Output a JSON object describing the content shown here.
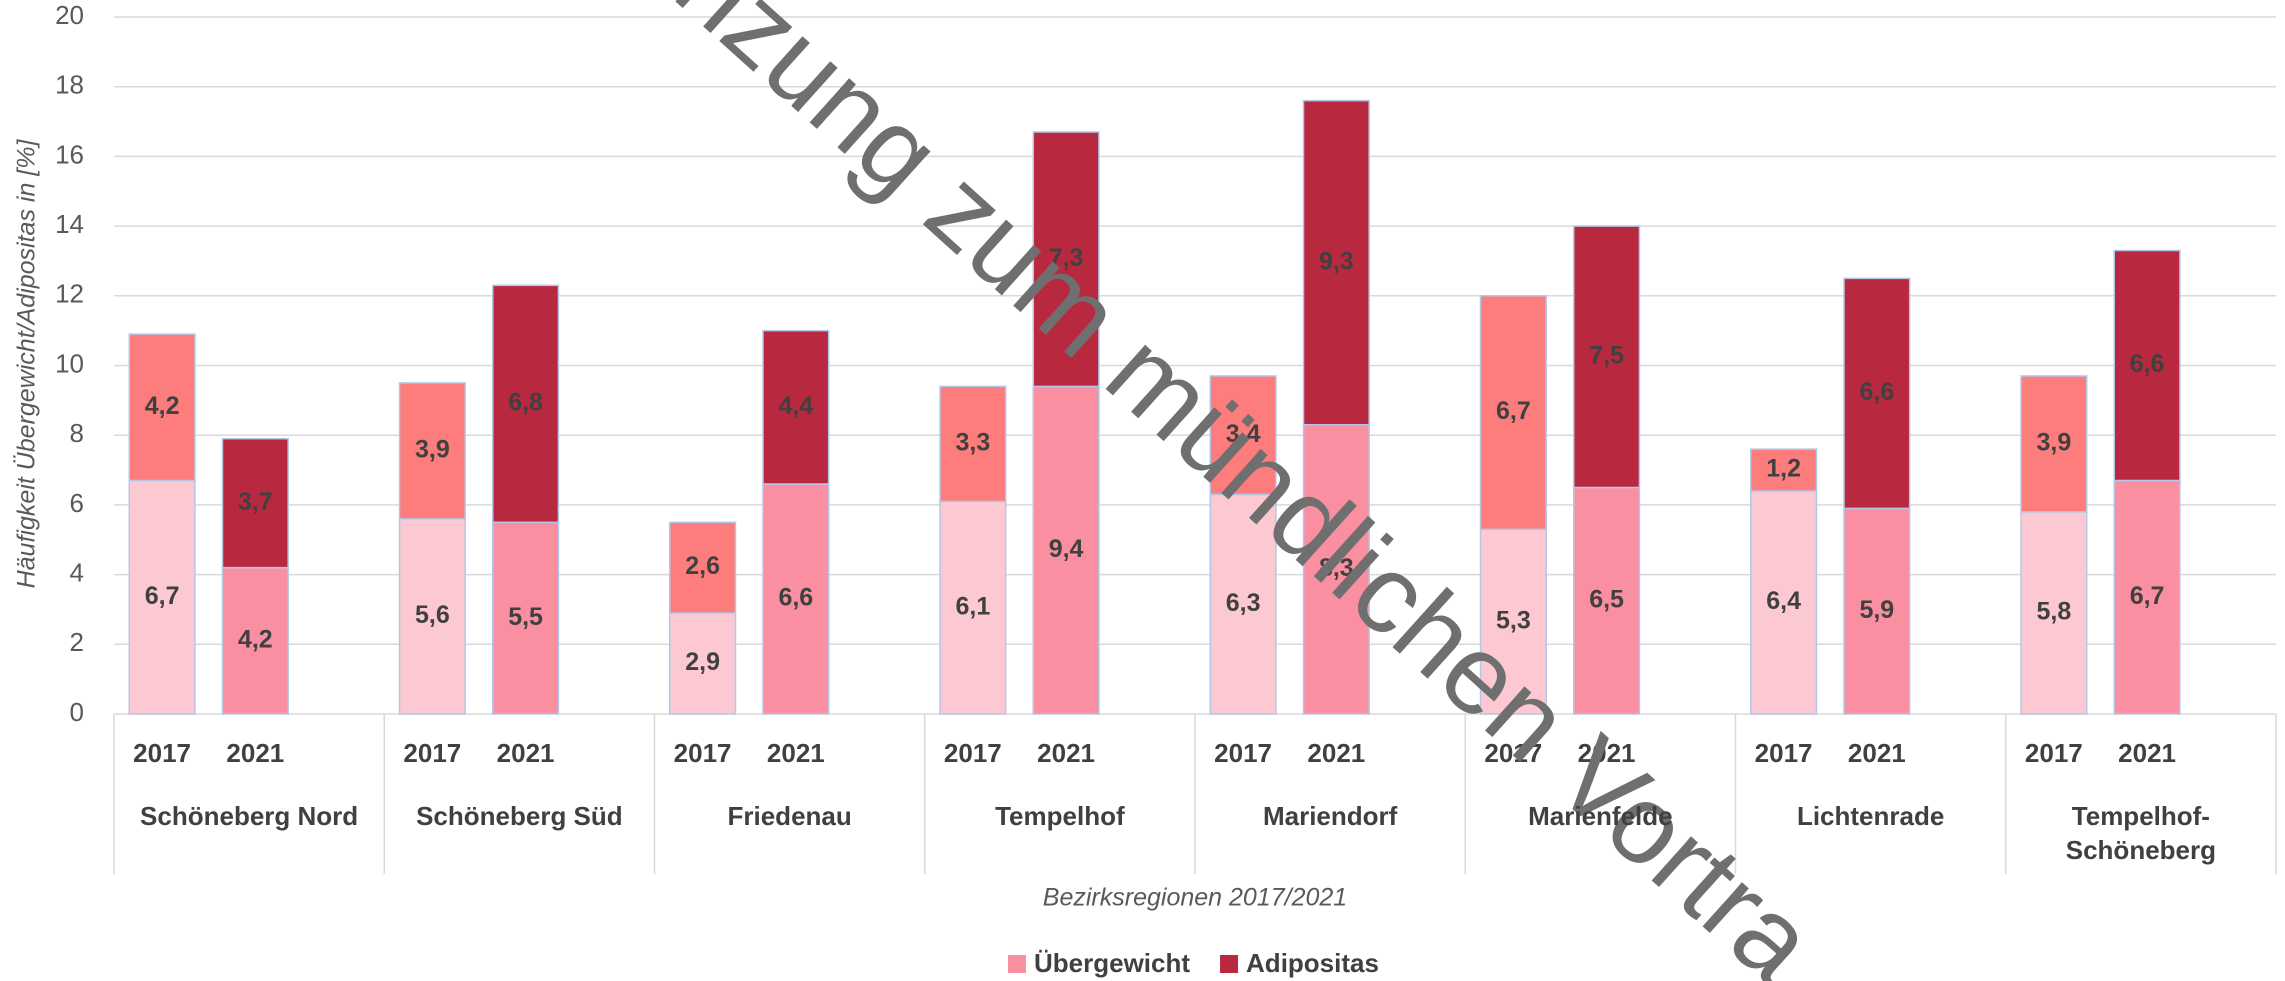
{
  "chart_data": {
    "type": "bar",
    "stacked": true,
    "x_label": "Bezirksregionen 2017/2021",
    "y_label": "Häufigkeit Übergewicht/Adipositas in [%]",
    "watermark": "nzung zum mündlichen Vortra",
    "groups": [
      "Schöneberg Nord",
      "Schöneberg Süd",
      "Friedenau",
      "Tempelhof",
      "Mariendorf",
      "Marienfelde",
      "Lichtenrade",
      "Tempelhof-Schöneberg"
    ],
    "categories": [
      "2017",
      "2021",
      "2017",
      "2021",
      "2017",
      "2021",
      "2017",
      "2021",
      "2017",
      "2021",
      "2017",
      "2021",
      "2017",
      "2021",
      "2017",
      "2021"
    ],
    "series": [
      {
        "name": "Übergewicht",
        "color": "#f7909f",
        "point_colors": [
          "#fcc9d2",
          "#f98fa0",
          "#fcc9d2",
          "#f98fa0",
          "#fcc9d2",
          "#f98fa0",
          "#fcc9d2",
          "#f98fa0",
          "#fcc9d2",
          "#f98fa0",
          "#fcc9d2",
          "#f98fa0",
          "#fcc9d2",
          "#f98fa0",
          "#fcc9d2",
          "#f98fa0"
        ],
        "values": [
          6.7,
          4.2,
          5.6,
          5.5,
          2.9,
          6.6,
          6.1,
          9.4,
          6.3,
          8.3,
          5.3,
          6.5,
          6.4,
          5.9,
          5.8,
          6.7
        ],
        "value_labels": [
          "6,7",
          "4,2",
          "5,6",
          "5,5",
          "2,9",
          "6,6",
          "6,1",
          "9,4",
          "6,3",
          "8,3",
          "5,3",
          "6,5",
          "6,4",
          "5,9",
          "5,8",
          "6,7"
        ]
      },
      {
        "name": "Adipositas",
        "color": "#b8293f",
        "point_colors": [
          "#fd7c7c",
          "#b8293f",
          "#fd7c7c",
          "#b8293f",
          "#fd7c7c",
          "#b8293f",
          "#fd7c7c",
          "#b8293f",
          "#fd7c7c",
          "#b8293f",
          "#fd7c7c",
          "#b8293f",
          "#fd7c7c",
          "#b8293f",
          "#fd7c7c",
          "#b8293f"
        ],
        "values": [
          4.2,
          3.7,
          3.9,
          6.8,
          2.6,
          4.4,
          3.3,
          7.3,
          3.4,
          9.3,
          6.7,
          7.5,
          1.2,
          6.6,
          3.9,
          6.6
        ],
        "value_labels": [
          "4,2",
          "3,7",
          "3,9",
          "6,8",
          "2,6",
          "4,4",
          "3,3",
          "7,3",
          "3,4",
          "9,3",
          "6,7",
          "7,5",
          "1,2",
          "6,6",
          "3,9",
          "6,6"
        ]
      }
    ],
    "ylim": [
      0,
      20
    ],
    "yticks": [
      0,
      2,
      4,
      6,
      8,
      10,
      12,
      14,
      16,
      18,
      20
    ],
    "grid": true
  }
}
